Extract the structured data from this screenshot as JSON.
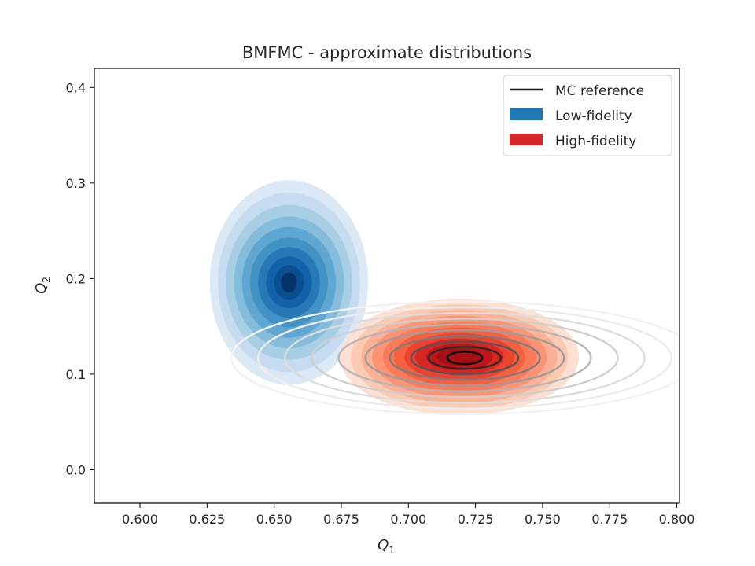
{
  "chart_data": {
    "type": "contour",
    "title": "BMFMC - approximate distributions",
    "xlabel": {
      "main": "Q",
      "sub": "1"
    },
    "ylabel": {
      "main": "Q",
      "sub": "2"
    },
    "xlim": [
      0.583,
      0.801
    ],
    "ylim": [
      -0.035,
      0.42
    ],
    "xticks": [
      "0.600",
      "0.625",
      "0.650",
      "0.675",
      "0.700",
      "0.725",
      "0.750",
      "0.775",
      "0.800"
    ],
    "yticks": [
      "0.0",
      "0.1",
      "0.2",
      "0.3",
      "0.4"
    ],
    "grid": false,
    "legend_position": "top-right",
    "series": [
      {
        "name": "MC reference",
        "kind": "contour-lines",
        "color": "#111111",
        "center": [
          0.721,
          0.117
        ],
        "levels": [
          {
            "rx": 0.087,
            "ry": 0.059,
            "color": "#f2f2f2"
          },
          {
            "rx": 0.077,
            "ry": 0.053,
            "color": "#ececec"
          },
          {
            "rx": 0.067,
            "ry": 0.047,
            "color": "#dddddd"
          },
          {
            "rx": 0.057,
            "ry": 0.041,
            "color": "#cfcfcf"
          },
          {
            "rx": 0.047,
            "ry": 0.035,
            "color": "#b6b6b6"
          },
          {
            "rx": 0.037,
            "ry": 0.029,
            "color": "#9c9c9c"
          },
          {
            "rx": 0.028,
            "ry": 0.023,
            "color": "#7c7c7c"
          },
          {
            "rx": 0.02,
            "ry": 0.017,
            "color": "#555555"
          },
          {
            "rx": 0.0135,
            "ry": 0.0115,
            "color": "#2a2a2a"
          },
          {
            "rx": 0.0065,
            "ry": 0.0065,
            "color": "#0a0a0a"
          }
        ]
      },
      {
        "name": "Low-fidelity",
        "kind": "filled-contours",
        "color": "#1f77b4",
        "center": [
          0.6555,
          0.196
        ],
        "levels": [
          {
            "rx": 0.0295,
            "ry": 0.107,
            "color": "#dbe9f6"
          },
          {
            "rx": 0.0265,
            "ry": 0.094,
            "color": "#c6dbef"
          },
          {
            "rx": 0.0235,
            "ry": 0.081,
            "color": "#a8cee4"
          },
          {
            "rx": 0.0205,
            "ry": 0.069,
            "color": "#85bcdc"
          },
          {
            "rx": 0.0175,
            "ry": 0.058,
            "color": "#60a6d2"
          },
          {
            "rx": 0.0145,
            "ry": 0.047,
            "color": "#4292c6"
          },
          {
            "rx": 0.0115,
            "ry": 0.037,
            "color": "#2878b8"
          },
          {
            "rx": 0.0085,
            "ry": 0.027,
            "color": "#1561a9"
          },
          {
            "rx": 0.0055,
            "ry": 0.018,
            "color": "#0b4f93"
          },
          {
            "rx": 0.003,
            "ry": 0.0105,
            "color": "#08306b"
          }
        ]
      },
      {
        "name": "High-fidelity",
        "kind": "filled-contours",
        "color": "#d62728",
        "center": [
          0.719,
          0.118
        ],
        "levels": [
          {
            "rx": 0.0445,
            "ry": 0.061,
            "color": "#fde0d2"
          },
          {
            "rx": 0.0405,
            "ry": 0.055,
            "color": "#fcc9b2"
          },
          {
            "rx": 0.0365,
            "ry": 0.049,
            "color": "#fcb095"
          },
          {
            "rx": 0.0325,
            "ry": 0.043,
            "color": "#fc9474"
          },
          {
            "rx": 0.0285,
            "ry": 0.037,
            "color": "#fb7a59"
          },
          {
            "rx": 0.0245,
            "ry": 0.031,
            "color": "#f6603f"
          },
          {
            "rx": 0.0205,
            "ry": 0.025,
            "color": "#ec4331"
          },
          {
            "rx": 0.0165,
            "ry": 0.019,
            "color": "#d82623"
          },
          {
            "rx": 0.0125,
            "ry": 0.014,
            "color": "#c0161b"
          },
          {
            "rx": 0.0085,
            "ry": 0.009,
            "color": "#a50f15"
          }
        ]
      }
    ]
  }
}
